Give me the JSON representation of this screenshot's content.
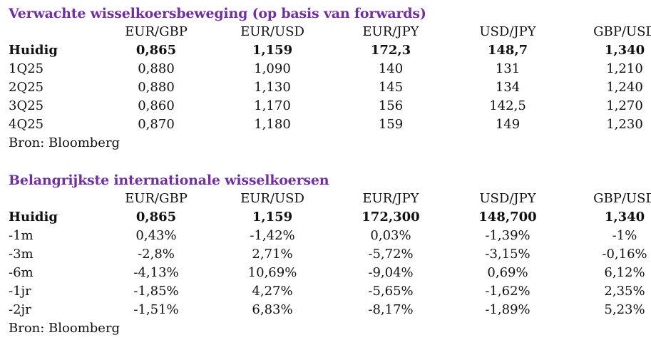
{
  "forecast": {
    "title": "Verwachte wisselkoersbeweging (op basis van forwards)",
    "columns": [
      "EUR/GBP",
      "EUR/USD",
      "EUR/JPY",
      "USD/JPY",
      "GBP/USD"
    ],
    "rows": [
      {
        "label": "Huidig",
        "values": [
          "0,865",
          "1,159",
          "172,3",
          "148,7",
          "1,340"
        ]
      },
      {
        "label": "1Q25",
        "values": [
          "0,880",
          "1,090",
          "140",
          "131",
          "1,210"
        ]
      },
      {
        "label": "2Q25",
        "values": [
          "0,880",
          "1,130",
          "145",
          "134",
          "1,240"
        ]
      },
      {
        "label": "3Q25",
        "values": [
          "0,860",
          "1,170",
          "156",
          "142,5",
          "1,270"
        ]
      },
      {
        "label": "4Q25",
        "values": [
          "0,870",
          "1,180",
          "159",
          "149",
          "1,230"
        ]
      }
    ],
    "source": "Bron: Bloomberg"
  },
  "rates": {
    "title": "Belangrijkste internationale wisselkoersen",
    "columns": [
      "EUR/GBP",
      "EUR/USD",
      "EUR/JPY",
      "USD/JPY",
      "GBP/USD"
    ],
    "rows": [
      {
        "label": "Huidig",
        "values": [
          "0,865",
          "1,159",
          "172,300",
          "148,700",
          "1,340"
        ]
      },
      {
        "label": "-1m",
        "values": [
          "0,43%",
          "-1,42%",
          "0,03%",
          "-1,39%",
          "-1%"
        ]
      },
      {
        "label": "-3m",
        "values": [
          "-2,8%",
          "2,71%",
          "-5,72%",
          "-3,15%",
          "-0,16%"
        ]
      },
      {
        "label": "-6m",
        "values": [
          "-4,13%",
          "10,69%",
          "-9,04%",
          "0,69%",
          "6,12%"
        ]
      },
      {
        "label": "-1jr",
        "values": [
          "-1,85%",
          "4,27%",
          "-5,65%",
          "-1,62%",
          "2,35%"
        ]
      },
      {
        "label": "-2jr",
        "values": [
          "-1,51%",
          "6,83%",
          "-8,17%",
          "-1,89%",
          "5,23%"
        ]
      }
    ],
    "source": "Bron: Bloomberg"
  },
  "colors": {
    "title": "#7030a0",
    "text": "#111111"
  }
}
